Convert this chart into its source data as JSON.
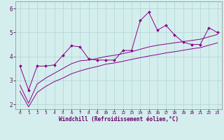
{
  "xlabel": "Windchill (Refroidissement éolien,°C)",
  "xlim": [
    -0.5,
    23.5
  ],
  "ylim": [
    1.8,
    6.3
  ],
  "xticks": [
    0,
    1,
    2,
    3,
    4,
    5,
    6,
    7,
    8,
    9,
    10,
    11,
    12,
    13,
    14,
    15,
    16,
    17,
    18,
    19,
    20,
    21,
    22,
    23
  ],
  "yticks": [
    2,
    3,
    4,
    5,
    6
  ],
  "bg_color": "#d4eeee",
  "line_color": "#880088",
  "line1_x": [
    0,
    1,
    2,
    3,
    4,
    5,
    6,
    7,
    8,
    9,
    10,
    11,
    12,
    13,
    14,
    15,
    16,
    17,
    18,
    19,
    20,
    21,
    22,
    23
  ],
  "line1_y": [
    3.6,
    2.6,
    3.6,
    3.6,
    3.65,
    4.05,
    4.45,
    4.4,
    3.9,
    3.85,
    3.85,
    3.85,
    4.25,
    4.25,
    5.5,
    5.85,
    5.1,
    5.3,
    4.9,
    4.6,
    4.5,
    4.5,
    5.2,
    5.0
  ],
  "line2_x": [
    0,
    1,
    2,
    3,
    4,
    5,
    6,
    7,
    8,
    9,
    10,
    11,
    12,
    13,
    14,
    15,
    16,
    17,
    18,
    19,
    20,
    21,
    22,
    23
  ],
  "line2_y": [
    2.8,
    2.05,
    2.85,
    3.1,
    3.3,
    3.5,
    3.7,
    3.82,
    3.85,
    3.92,
    4.0,
    4.05,
    4.12,
    4.2,
    4.3,
    4.4,
    4.47,
    4.52,
    4.57,
    4.62,
    4.67,
    4.72,
    4.82,
    4.92
  ],
  "line3_x": [
    0,
    1,
    2,
    3,
    4,
    5,
    6,
    7,
    8,
    9,
    10,
    11,
    12,
    13,
    14,
    15,
    16,
    17,
    18,
    19,
    20,
    21,
    22,
    23
  ],
  "line3_y": [
    2.55,
    1.9,
    2.5,
    2.75,
    2.95,
    3.1,
    3.28,
    3.4,
    3.5,
    3.58,
    3.68,
    3.73,
    3.8,
    3.88,
    3.95,
    4.02,
    4.08,
    4.15,
    4.2,
    4.26,
    4.32,
    4.37,
    4.47,
    4.57
  ]
}
